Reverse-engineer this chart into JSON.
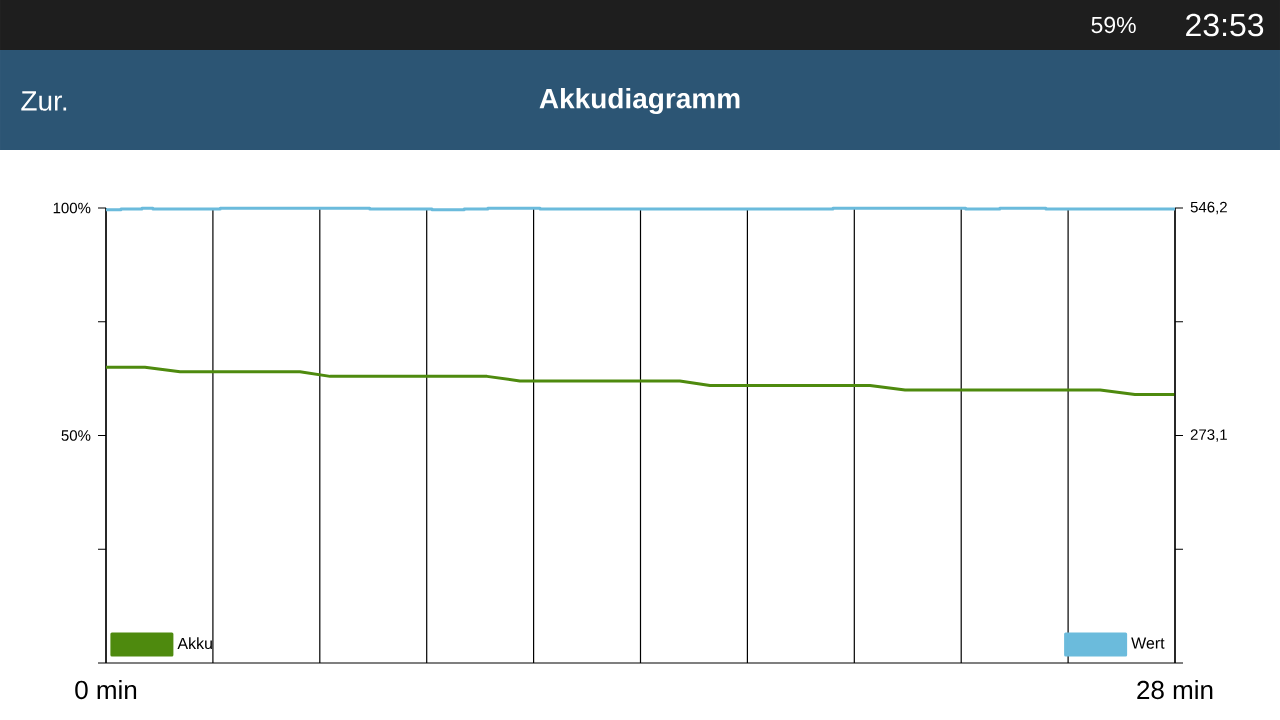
{
  "chart_data": {
    "type": "line",
    "title": "Akkudiagramm",
    "annotations": [
      "Zur.",
      "59%",
      "23:53"
    ],
    "xlim": [
      0,
      28
    ],
    "xticks": [
      {
        "value": 0,
        "label": "0 min"
      },
      {
        "value": 2.8,
        "label": null
      },
      {
        "value": 5.6,
        "label": null
      },
      {
        "value": 8.4,
        "label": null
      },
      {
        "value": 11.2,
        "label": null
      },
      {
        "value": 14,
        "label": null
      },
      {
        "value": 16.8,
        "label": null
      },
      {
        "value": 19.6,
        "label": null
      },
      {
        "value": 22.4,
        "label": null
      },
      {
        "value": 25.2,
        "label": null
      },
      {
        "value": 28,
        "label": "28 min"
      }
    ],
    "ylim": [
      0,
      100
    ],
    "yticks": [
      {
        "value": 0,
        "label": null
      },
      {
        "value": 25,
        "label": null
      },
      {
        "value": 50,
        "label": "50%"
      },
      {
        "value": 75,
        "label": null
      },
      {
        "value": 100,
        "label": "100%"
      }
    ],
    "y2lim": [
      0,
      546.2
    ],
    "y2ticks": [
      {
        "value": 0,
        "label": null
      },
      {
        "value": 136.55,
        "label": null
      },
      {
        "value": 273.1,
        "label": "273,1"
      },
      {
        "value": 409.65,
        "label": null
      },
      {
        "value": 546.2,
        "label": "546,2"
      }
    ],
    "grid": "x",
    "legend": "bottom",
    "series": [
      {
        "name": "Akku",
        "color": "#4e8a0e",
        "x": [
          0,
          1.02,
          1.94,
          5.08,
          5.87,
          9.98,
          10.84,
          15.03,
          15.82,
          20.01,
          20.93,
          26.04,
          26.95,
          28
        ],
        "values": [
          65,
          65,
          64,
          64,
          63,
          63,
          62,
          62,
          61,
          61,
          60,
          60,
          59,
          59
        ]
      },
      {
        "name": "Wert",
        "color": "#6bbbdc",
        "type": "step",
        "axis": "y2",
        "x": [
          0,
          0.39,
          0.94,
          1.23,
          2.99,
          6.91,
          8.54,
          9.38,
          10.0,
          11.37,
          19.04,
          22.52,
          23.41,
          24.62,
          28
        ],
        "values": [
          544,
          545,
          546,
          545,
          546,
          545,
          544,
          545,
          546,
          545,
          546,
          545,
          546,
          545,
          545
        ]
      }
    ]
  }
}
